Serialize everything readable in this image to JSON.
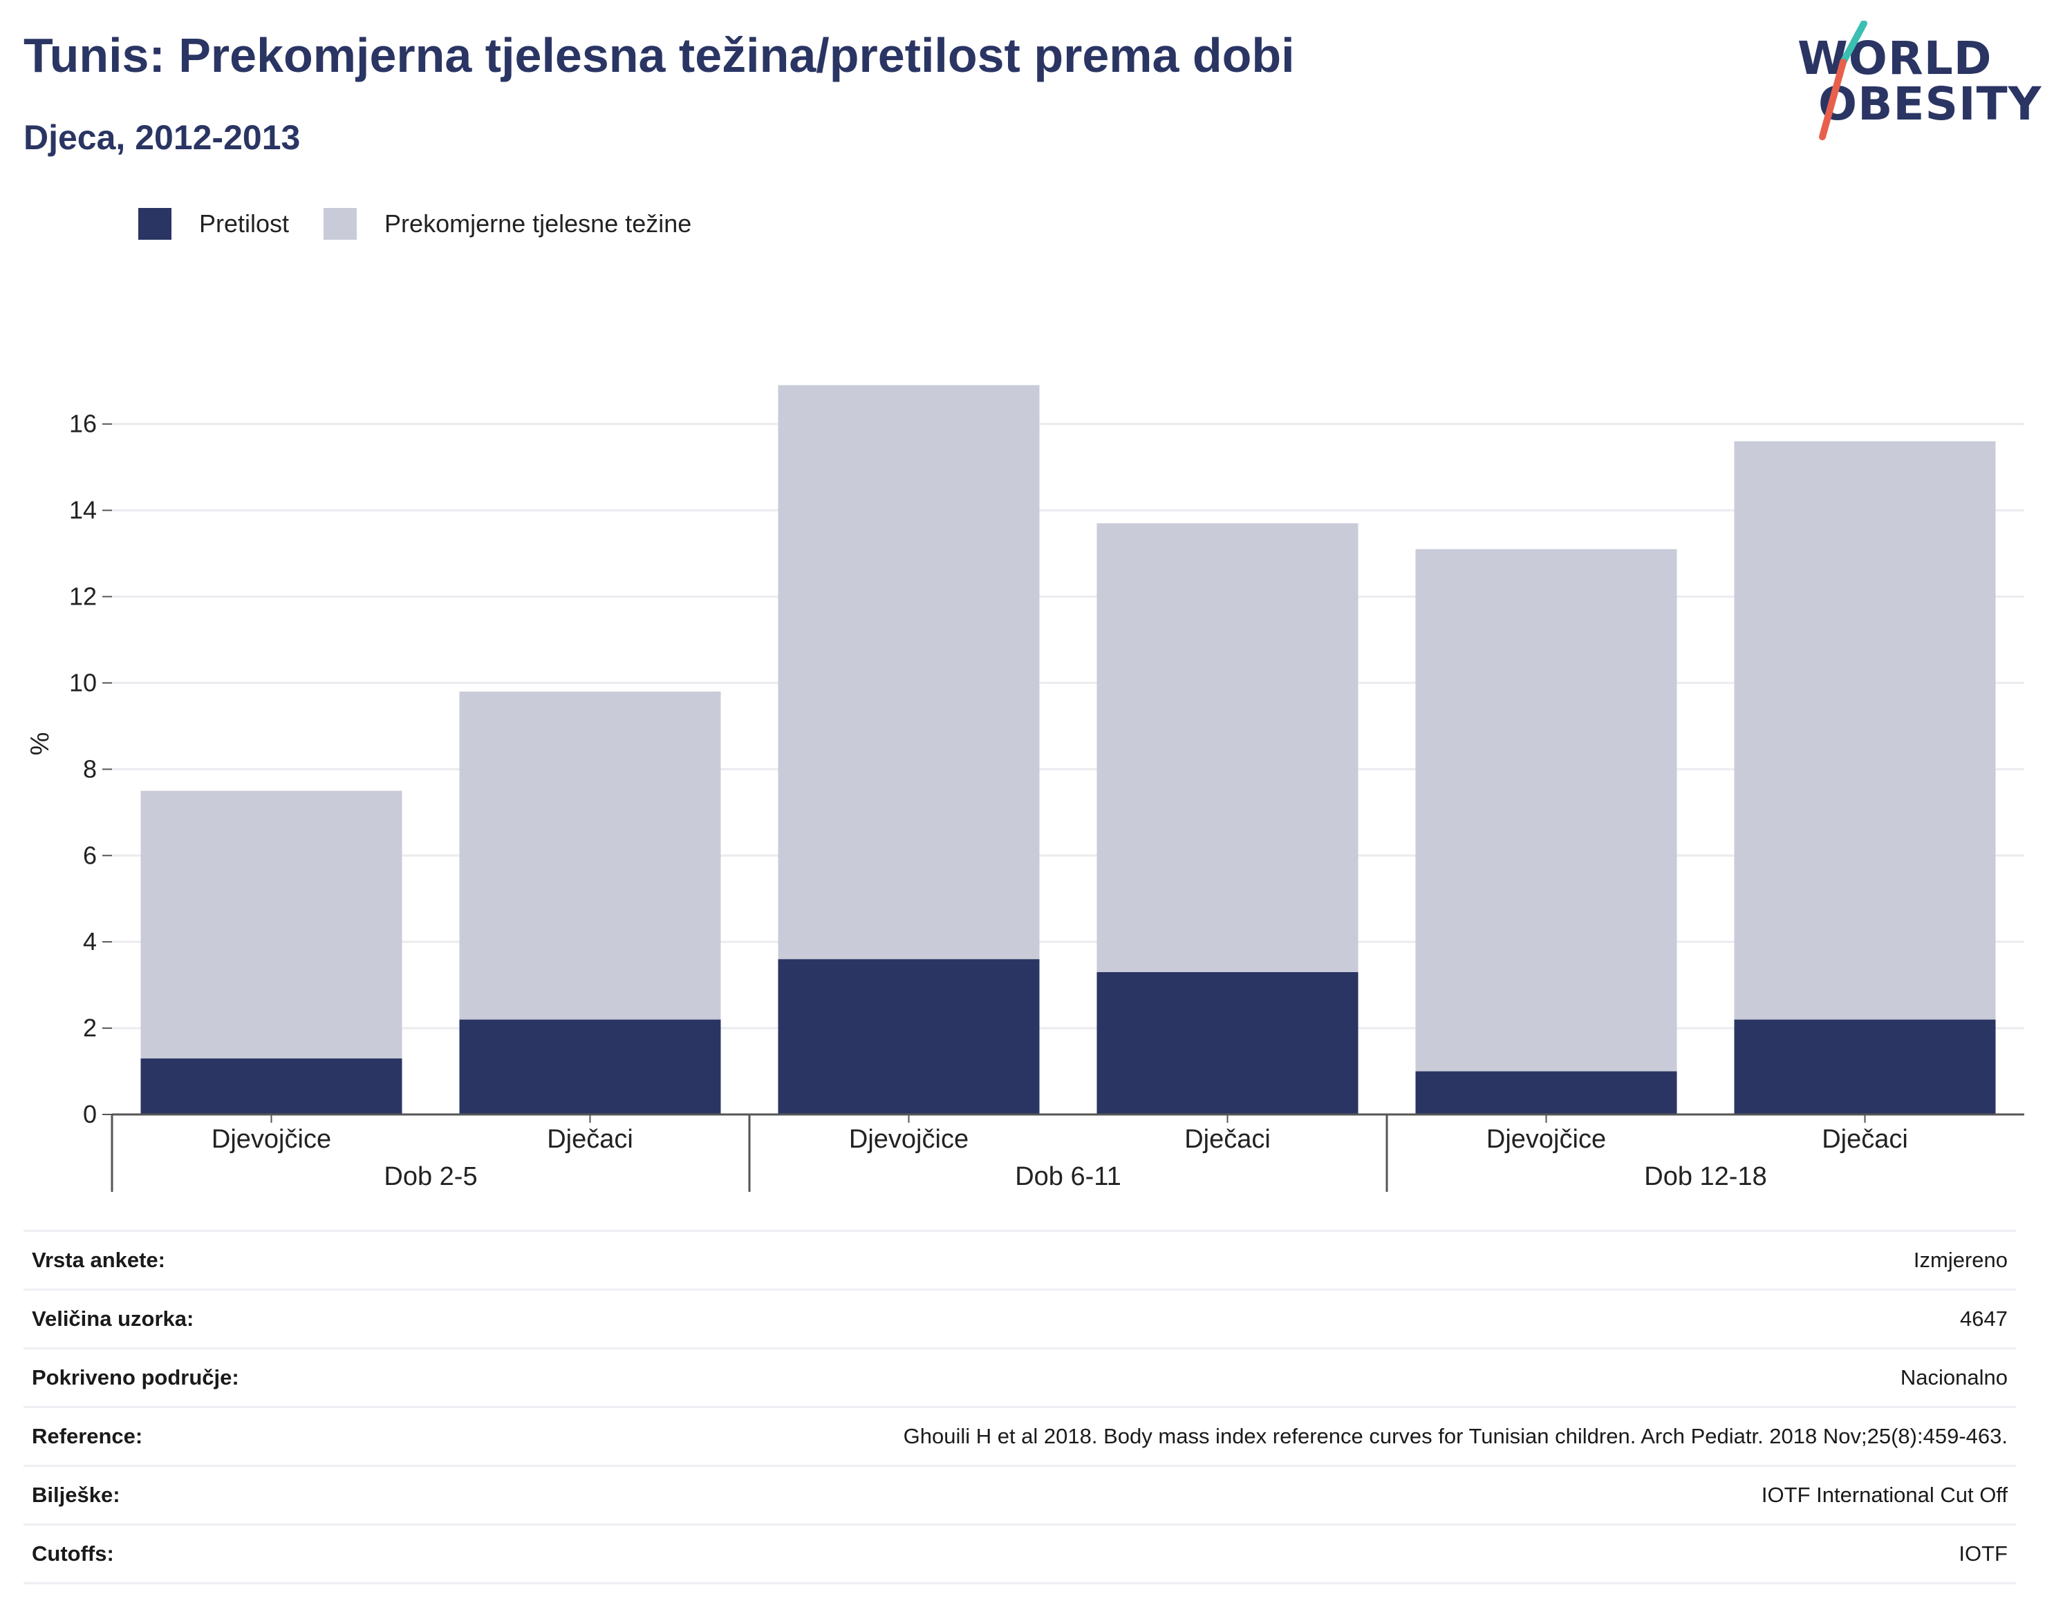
{
  "header": {
    "title": "Tunis: Prekomjerna tjelesna težina/pretilost prema dobi",
    "subtitle": "Djeca, 2012-2013"
  },
  "logo": {
    "line1": "WORLD",
    "line2": "OBESITY",
    "accent_colors": [
      "#3bbfb2",
      "#e8604c"
    ]
  },
  "colors": {
    "obesity": "#2a3563",
    "overweight": "#c9cbd8",
    "grid": "#ebebf0",
    "axis": "#555555"
  },
  "legend": [
    {
      "label": "Pretilost",
      "color": "#2a3563"
    },
    {
      "label": "Prekomjerne tjelesne težine",
      "color": "#c9cbd8"
    }
  ],
  "chart_data": {
    "type": "bar",
    "stacked": true,
    "ylabel": "%",
    "ylim": [
      0,
      17.5
    ],
    "yticks": [
      0,
      2,
      4,
      6,
      8,
      10,
      12,
      14,
      16
    ],
    "grid": true,
    "legend_position": "top-left",
    "groups": [
      {
        "label": "Dob 2-5",
        "categories": [
          "Djevojčice",
          "Dječaci"
        ]
      },
      {
        "label": "Dob 6-11",
        "categories": [
          "Djevojčice",
          "Dječaci"
        ]
      },
      {
        "label": "Dob 12-18",
        "categories": [
          "Djevojčice",
          "Dječaci"
        ]
      }
    ],
    "series": [
      {
        "name": "Pretilost",
        "values": [
          1.3,
          2.2,
          3.6,
          3.3,
          1.0,
          2.2
        ]
      },
      {
        "name": "Prekomjerne tjelesne težine",
        "values": [
          6.2,
          7.6,
          13.3,
          10.4,
          12.1,
          13.4
        ]
      }
    ]
  },
  "info": [
    {
      "label": "Vrsta ankete:",
      "value": "Izmjereno"
    },
    {
      "label": "Veličina uzorka:",
      "value": "4647"
    },
    {
      "label": "Pokriveno područje:",
      "value": "Nacionalno"
    },
    {
      "label": "Reference:",
      "value": "Ghouili H et al 2018. Body mass index reference curves for Tunisian children. Arch Pediatr. 2018 Nov;25(8):459-463."
    },
    {
      "label": "Bilješke:",
      "value": "IOTF International Cut Off"
    },
    {
      "label": "Cutoffs:",
      "value": "IOTF"
    }
  ]
}
